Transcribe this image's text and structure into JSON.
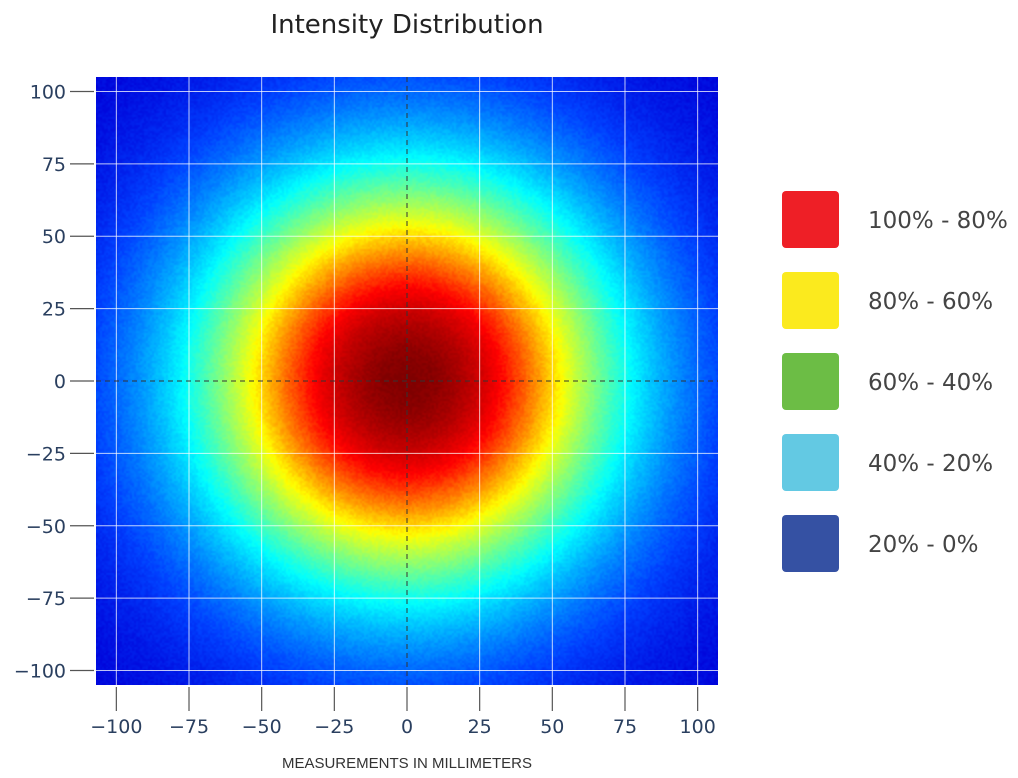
{
  "chart_data": {
    "type": "heatmap",
    "title": "Intensity Distribution",
    "xlabel": "MEASUREMENTS IN MILLIMETERS",
    "ylabel": "",
    "xlim": [
      -107,
      107
    ],
    "ylim": [
      -105,
      105
    ],
    "x_ticks": [
      -100,
      -75,
      -50,
      -25,
      0,
      25,
      50,
      75,
      100
    ],
    "y_ticks": [
      100,
      75,
      50,
      25,
      0,
      -25,
      -50,
      -75,
      -100
    ],
    "x_tick_labels": [
      "−100",
      "−75",
      "−50",
      "−25",
      "0",
      "25",
      "50",
      "75",
      "100"
    ],
    "y_tick_labels": [
      "100",
      "75",
      "50",
      "25",
      "0",
      "−25",
      "−50",
      "−75",
      "−100"
    ],
    "grid": true,
    "crosshair_at": [
      0,
      0
    ],
    "distribution": {
      "shape": "radial gaussian",
      "center": [
        0,
        0
      ],
      "peak_percent": 100,
      "half_max_radius_mm": 60
    },
    "colorscale": [
      "#7f0000",
      "#ff0000",
      "#ffff00",
      "#00ffff",
      "#0040ff",
      "#0000d8"
    ],
    "legend_position": "right",
    "legend": [
      {
        "label": "100% - 80%",
        "color": "#ee1f26"
      },
      {
        "label": "80% - 60%",
        "color": "#fbea1e"
      },
      {
        "label": "60% - 40%",
        "color": "#6cbd45"
      },
      {
        "label": "40% - 20%",
        "color": "#63c9e3"
      },
      {
        "label": "20% - 0%",
        "color": "#3551a3"
      }
    ]
  }
}
